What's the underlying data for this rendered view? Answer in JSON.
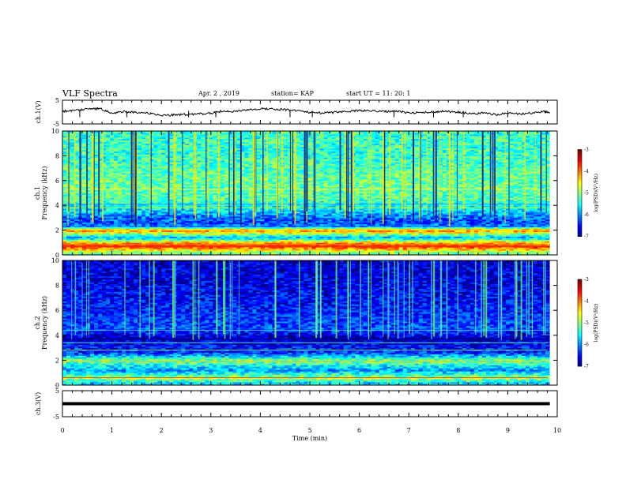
{
  "header": {
    "title": "VLF Spectra",
    "date": "Apr. 2 , 2019",
    "station": "station= KAP",
    "start": "start  UT =   11: 20: 1"
  },
  "chart_data": [
    {
      "type": "line",
      "name": "ch1-voltage",
      "ylabel": "ch.1(V)",
      "ylim": [
        -5,
        5
      ],
      "yticks": [
        "5",
        "-5"
      ],
      "xlim": [
        0,
        10
      ],
      "x": [
        0.0,
        0.25,
        0.5,
        0.75,
        1.0,
        1.25,
        1.5,
        1.75,
        2.0,
        2.25,
        2.5,
        2.75,
        3.0,
        3.25,
        3.5,
        3.75,
        4.0,
        4.25,
        4.5,
        4.75,
        5.0,
        5.25,
        5.5,
        5.75,
        6.0,
        6.25,
        6.5,
        6.75,
        7.0,
        7.25,
        7.5,
        7.75,
        8.0,
        8.25,
        8.5,
        8.75,
        9.0,
        9.25,
        9.5,
        9.75,
        9.85
      ],
      "values": [
        0.3,
        0.8,
        1.2,
        1.5,
        -0.5,
        0.2,
        -0.3,
        -0.6,
        -1.5,
        -1.2,
        -1.0,
        -0.8,
        -0.5,
        0.5,
        0.2,
        0.9,
        1.5,
        1.3,
        1.0,
        0.6,
        -0.2,
        -0.4,
        -0.1,
        0.1,
        0.7,
        0.5,
        0.2,
        0.4,
        -0.3,
        -0.2,
        0.1,
        0.3,
        0.0,
        -0.5,
        -0.4,
        -1.0,
        -0.6,
        -0.8,
        -0.3,
        0.2,
        -0.5
      ]
    },
    {
      "type": "heatmap",
      "name": "ch1-spectrogram",
      "ylabel": "ch.1",
      "ylabel2": "Frequency (kHz)",
      "ylim": [
        0,
        10
      ],
      "yticks": [
        "0",
        "2",
        "4",
        "6",
        "8",
        "10"
      ],
      "xlim": [
        0,
        10
      ],
      "colorbar": {
        "label": "log(PSD)(V²/Hz)",
        "range": [
          -7,
          -3
        ],
        "ticks": [
          "-3",
          "-4",
          "-5",
          "-6",
          "-7"
        ]
      },
      "level_profile": [
        {
          "f": 0.2,
          "v": -5.0
        },
        {
          "f": 0.7,
          "v": -3.6
        },
        {
          "f": 1.0,
          "v": -4.2
        },
        {
          "f": 1.4,
          "v": -5.8
        },
        {
          "f": 2.0,
          "v": -4.0
        },
        {
          "f": 2.3,
          "v": -5.9
        },
        {
          "f": 2.6,
          "v": -6.2
        },
        {
          "f": 3.0,
          "v": -6.1
        },
        {
          "f": 3.6,
          "v": -5.6
        },
        {
          "f": 4.5,
          "v": -5.2
        },
        {
          "f": 6.0,
          "v": -5.1
        },
        {
          "f": 8.0,
          "v": -5.3
        },
        {
          "f": 10.0,
          "v": -5.3
        }
      ]
    },
    {
      "type": "heatmap",
      "name": "ch2-spectrogram",
      "ylabel": "ch.2",
      "ylabel2": "Frequency (kHz)",
      "ylim": [
        0,
        10
      ],
      "yticks": [
        "0",
        "2",
        "4",
        "6",
        "8",
        "10"
      ],
      "xlim": [
        0,
        10
      ],
      "colorbar": {
        "label": "log(PSD)(V²/Hz)",
        "range": [
          -7,
          -3
        ],
        "ticks": [
          "-3",
          "-4",
          "-5",
          "-6",
          "-7"
        ]
      },
      "level_profile": [
        {
          "f": 0.2,
          "v": -5.6
        },
        {
          "f": 0.6,
          "v": -4.8
        },
        {
          "f": 1.2,
          "v": -5.9
        },
        {
          "f": 2.0,
          "v": -5.0
        },
        {
          "f": 2.6,
          "v": -6.3
        },
        {
          "f": 3.2,
          "v": -6.5
        },
        {
          "f": 3.8,
          "v": -6.8
        },
        {
          "f": 4.5,
          "v": -6.2
        },
        {
          "f": 6.0,
          "v": -6.4
        },
        {
          "f": 8.0,
          "v": -6.6
        },
        {
          "f": 10.0,
          "v": -6.7
        }
      ]
    },
    {
      "type": "line",
      "name": "ch3-voltage",
      "ylabel": "ch.3(V)",
      "ylim": [
        -5,
        5
      ],
      "yticks": [
        "5",
        "-5"
      ],
      "xlim": [
        0,
        10
      ],
      "x": [
        0,
        9.85
      ],
      "values": [
        0,
        0
      ],
      "xlabel": "Time (min)",
      "xticks": [
        "0",
        "1",
        "2",
        "3",
        "4",
        "5",
        "6",
        "7",
        "8",
        "9",
        "10"
      ]
    }
  ]
}
